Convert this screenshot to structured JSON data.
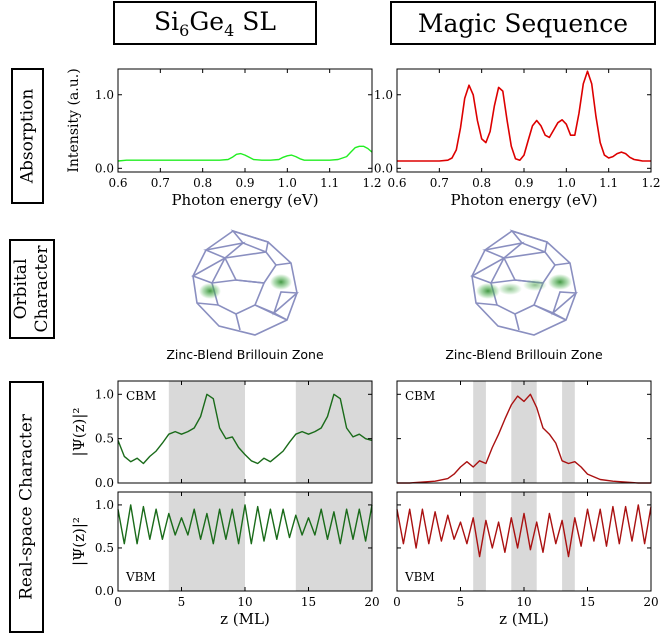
{
  "columns": [
    {
      "title_base": "Si",
      "title_sub1": "6",
      "title_mid": "Ge",
      "title_sub2": "4",
      "title_tail": " SL"
    },
    {
      "title": "Magic Sequence"
    }
  ],
  "row_labels": {
    "absorption": "Absorption",
    "orbital_line1": "Orbital",
    "orbital_line2": "Character",
    "realspace": "Real-space Character"
  },
  "brillouin_captions": [
    "Zinc-Blend Brillouin Zone",
    "Zinc-Blend Brillouin Zone"
  ],
  "colors": {
    "absorption_left": "#22ee22",
    "absorption_right": "#dd0000",
    "wave_left": "#1a6b1a",
    "wave_right": "#aa1111",
    "shade": "#d9d9d9",
    "bz_edge": "#8a8fc0",
    "bz_blob": "#3aa03a"
  },
  "chart_data": [
    {
      "type": "line",
      "panel": "absorption-si6ge4",
      "xlabel": "Photon energy (eV)",
      "ylabel": "Intensity (a.u.)",
      "xlim": [
        0.6,
        1.2
      ],
      "ylim": [
        -0.05,
        1.35
      ],
      "xticks": [
        "0.6",
        "0.7",
        "0.8",
        "0.9",
        "1.0",
        "1.1",
        "1.2"
      ],
      "yticks": [
        "0.0",
        "1.0"
      ],
      "series": [
        {
          "x": [
            0.6,
            0.62,
            0.64,
            0.66,
            0.68,
            0.7,
            0.72,
            0.74,
            0.76,
            0.78,
            0.8,
            0.82,
            0.84,
            0.86,
            0.87,
            0.88,
            0.89,
            0.9,
            0.91,
            0.92,
            0.94,
            0.96,
            0.98,
            0.99,
            1.0,
            1.01,
            1.02,
            1.03,
            1.04,
            1.06,
            1.08,
            1.1,
            1.12,
            1.14,
            1.15,
            1.16,
            1.17,
            1.18,
            1.19,
            1.2
          ],
          "y": [
            0.1,
            0.11,
            0.11,
            0.11,
            0.11,
            0.11,
            0.11,
            0.11,
            0.11,
            0.11,
            0.11,
            0.11,
            0.11,
            0.12,
            0.15,
            0.19,
            0.2,
            0.18,
            0.15,
            0.12,
            0.11,
            0.11,
            0.12,
            0.15,
            0.17,
            0.18,
            0.16,
            0.13,
            0.11,
            0.11,
            0.11,
            0.11,
            0.12,
            0.16,
            0.22,
            0.28,
            0.3,
            0.3,
            0.27,
            0.22
          ]
        }
      ]
    },
    {
      "type": "line",
      "panel": "absorption-magic",
      "xlabel": "Photon energy (eV)",
      "xlim": [
        0.6,
        1.2
      ],
      "ylim": [
        -0.05,
        1.35
      ],
      "xticks": [
        "0.6",
        "0.7",
        "0.8",
        "0.9",
        "1.0",
        "1.1",
        "1.2"
      ],
      "yticks": [
        "0.0",
        "1.0"
      ],
      "series": [
        {
          "x": [
            0.6,
            0.62,
            0.64,
            0.66,
            0.68,
            0.7,
            0.72,
            0.73,
            0.74,
            0.75,
            0.76,
            0.77,
            0.78,
            0.79,
            0.8,
            0.81,
            0.82,
            0.83,
            0.84,
            0.85,
            0.86,
            0.87,
            0.88,
            0.89,
            0.9,
            0.91,
            0.92,
            0.93,
            0.94,
            0.95,
            0.96,
            0.97,
            0.98,
            0.99,
            1.0,
            1.01,
            1.02,
            1.03,
            1.04,
            1.05,
            1.06,
            1.07,
            1.08,
            1.09,
            1.1,
            1.11,
            1.12,
            1.13,
            1.14,
            1.15,
            1.16,
            1.17,
            1.18,
            1.19,
            1.2
          ],
          "y": [
            0.1,
            0.1,
            0.1,
            0.1,
            0.1,
            0.1,
            0.11,
            0.14,
            0.25,
            0.55,
            0.95,
            1.13,
            1.0,
            0.65,
            0.4,
            0.35,
            0.5,
            0.85,
            1.1,
            1.05,
            0.65,
            0.3,
            0.13,
            0.11,
            0.18,
            0.38,
            0.58,
            0.65,
            0.58,
            0.45,
            0.42,
            0.52,
            0.62,
            0.66,
            0.6,
            0.45,
            0.45,
            0.75,
            1.15,
            1.32,
            1.15,
            0.7,
            0.35,
            0.18,
            0.14,
            0.16,
            0.2,
            0.22,
            0.2,
            0.15,
            0.12,
            0.11,
            0.1,
            0.1,
            0.1
          ]
        }
      ]
    },
    {
      "type": "line",
      "panel": "cbm-si6ge4",
      "label": "CBM",
      "ylabel": "|Ψ(z)|²",
      "xlim": [
        0,
        20
      ],
      "ylim": [
        0,
        1.15
      ],
      "yticks": [
        "0.0",
        "0.5",
        "1.0"
      ],
      "shaded_regions": [
        [
          4,
          10
        ],
        [
          14,
          20
        ]
      ],
      "series": [
        {
          "x": [
            0,
            0.5,
            1,
            1.5,
            2,
            2.5,
            3,
            3.5,
            4,
            4.5,
            5,
            5.5,
            6,
            6.5,
            7,
            7.5,
            8,
            8.5,
            9,
            9.5,
            10,
            10.5,
            11,
            11.5,
            12,
            12.5,
            13,
            13.5,
            14,
            14.5,
            15,
            15.5,
            16,
            16.5,
            17,
            17.5,
            18,
            18.5,
            19,
            19.5,
            20
          ],
          "y": [
            0.48,
            0.3,
            0.24,
            0.28,
            0.22,
            0.3,
            0.36,
            0.45,
            0.55,
            0.58,
            0.55,
            0.58,
            0.62,
            0.75,
            1.0,
            0.95,
            0.62,
            0.5,
            0.52,
            0.4,
            0.32,
            0.25,
            0.22,
            0.28,
            0.24,
            0.3,
            0.36,
            0.46,
            0.55,
            0.58,
            0.55,
            0.58,
            0.62,
            0.75,
            1.0,
            0.95,
            0.62,
            0.52,
            0.55,
            0.5,
            0.48
          ]
        }
      ]
    },
    {
      "type": "line",
      "panel": "cbm-magic",
      "label": "CBM",
      "xlim": [
        0,
        20
      ],
      "ylim": [
        0,
        1.15
      ],
      "shaded_regions": [
        [
          6,
          7
        ],
        [
          9,
          11
        ],
        [
          13,
          14
        ]
      ],
      "series": [
        {
          "x": [
            0,
            1,
            2,
            3,
            4,
            4.5,
            5,
            5.5,
            6,
            6.5,
            7,
            7.5,
            8,
            8.5,
            9,
            9.5,
            10,
            10.5,
            11,
            11.5,
            12,
            12.5,
            13,
            13.5,
            14,
            14.5,
            15,
            16,
            17,
            18,
            19,
            20
          ],
          "y": [
            0.0,
            0.0,
            0.01,
            0.02,
            0.05,
            0.1,
            0.18,
            0.24,
            0.18,
            0.25,
            0.22,
            0.4,
            0.55,
            0.72,
            0.88,
            0.98,
            0.92,
            1.0,
            0.85,
            0.62,
            0.55,
            0.45,
            0.25,
            0.22,
            0.24,
            0.18,
            0.1,
            0.04,
            0.02,
            0.01,
            0.0,
            0.0
          ]
        }
      ]
    },
    {
      "type": "line",
      "panel": "vbm-si6ge4",
      "label": "VBM",
      "ylabel": "|Ψ(z)|²",
      "xlabel": "z (ML)",
      "xlim": [
        0,
        20
      ],
      "ylim": [
        0,
        1.15
      ],
      "xticks": [
        "0",
        "5",
        "10",
        "15",
        "20"
      ],
      "yticks": [
        "0.0",
        "0.5",
        "1.0"
      ],
      "shaded_regions": [
        [
          4,
          10
        ],
        [
          14,
          20
        ]
      ],
      "series": [
        {
          "x": [
            0,
            0.5,
            1,
            1.5,
            2,
            2.5,
            3,
            3.5,
            4,
            4.5,
            5,
            5.5,
            6,
            6.5,
            7,
            7.5,
            8,
            8.5,
            9,
            9.5,
            10,
            10.5,
            11,
            11.5,
            12,
            12.5,
            13,
            13.5,
            14,
            14.5,
            15,
            15.5,
            16,
            16.5,
            17,
            17.5,
            18,
            18.5,
            19,
            19.5,
            20
          ],
          "y": [
            0.95,
            0.55,
            1.0,
            0.55,
            0.98,
            0.6,
            0.95,
            0.6,
            0.9,
            0.65,
            0.85,
            0.65,
            0.95,
            0.6,
            0.9,
            0.55,
            0.95,
            0.6,
            0.95,
            0.55,
            1.0,
            0.55,
            0.98,
            0.58,
            0.95,
            0.6,
            0.95,
            0.62,
            0.88,
            0.65,
            0.85,
            0.65,
            0.95,
            0.6,
            0.92,
            0.55,
            0.95,
            0.6,
            0.95,
            0.58,
            1.0
          ]
        }
      ]
    },
    {
      "type": "line",
      "panel": "vbm-magic",
      "label": "VBM",
      "xlabel": "z (ML)",
      "xlim": [
        0,
        20
      ],
      "ylim": [
        0,
        1.15
      ],
      "xticks": [
        "0",
        "5",
        "10",
        "15",
        "20"
      ],
      "shaded_regions": [
        [
          6,
          7
        ],
        [
          9,
          11
        ],
        [
          13,
          14
        ]
      ],
      "series": [
        {
          "x": [
            0,
            0.5,
            1,
            1.5,
            2,
            2.5,
            3,
            3.5,
            4,
            4.5,
            5,
            5.5,
            6,
            6.5,
            7,
            7.5,
            8,
            8.5,
            9,
            9.5,
            10,
            10.5,
            11,
            11.5,
            12,
            12.5,
            13,
            13.5,
            14,
            14.5,
            15,
            15.5,
            16,
            16.5,
            17,
            17.5,
            18,
            18.5,
            19,
            19.5,
            20
          ],
          "y": [
            0.95,
            0.55,
            0.95,
            0.5,
            0.95,
            0.55,
            0.92,
            0.58,
            0.88,
            0.6,
            0.8,
            0.55,
            0.85,
            0.4,
            0.82,
            0.5,
            0.8,
            0.45,
            0.85,
            0.5,
            0.9,
            0.48,
            0.8,
            0.45,
            0.9,
            0.55,
            0.82,
            0.4,
            0.85,
            0.52,
            0.95,
            0.58,
            0.95,
            0.52,
            0.98,
            0.55,
            0.98,
            0.58,
            1.0,
            0.55,
            0.98
          ]
        }
      ]
    }
  ]
}
